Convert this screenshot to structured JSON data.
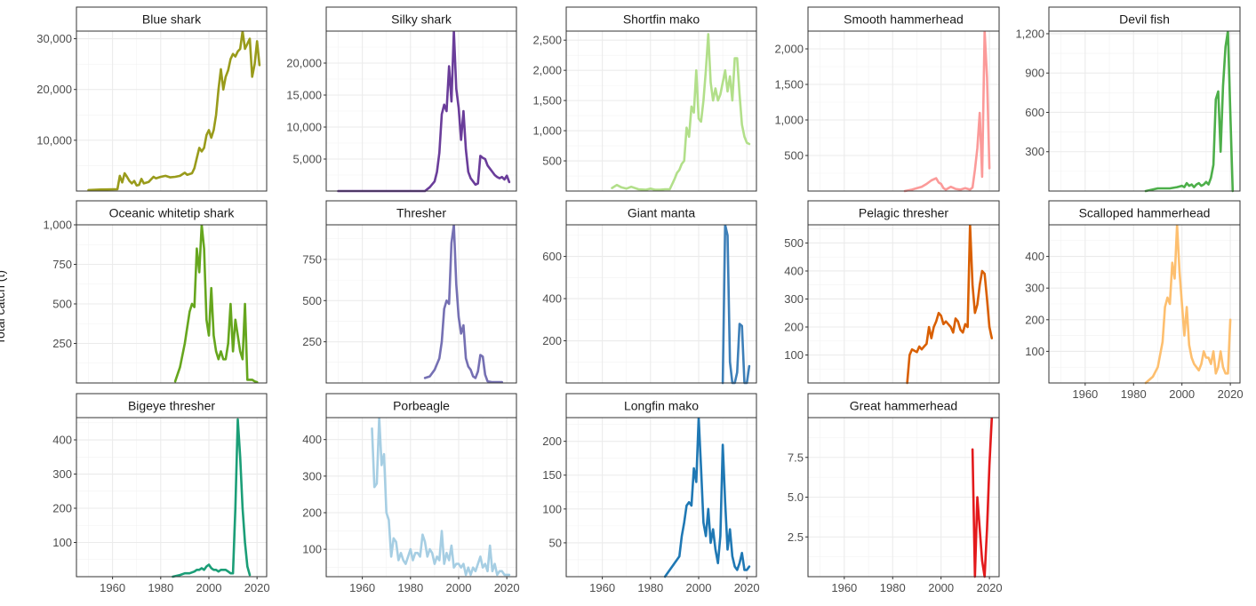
{
  "figure": {
    "ylabel": "Total catch (t)"
  },
  "chart_data": {
    "type": "line",
    "layout": "facet-grid",
    "ylabel": "Total catch (t)",
    "xlim": [
      1945,
      2024
    ],
    "x_ticks": [
      1960,
      1980,
      2000,
      2020
    ],
    "grid": true,
    "legend": "none",
    "panels": [
      {
        "name": "Blue shark",
        "color": "#999b1b",
        "ylim": [
          0,
          31500
        ],
        "y_ticks": [
          10000,
          20000,
          30000
        ],
        "y_tick_labels": [
          "10,000",
          "20,000",
          "30,000"
        ],
        "x": [
          1950,
          1955,
          1962,
          1963,
          1964,
          1965,
          1966,
          1967,
          1968,
          1969,
          1970,
          1971,
          1972,
          1973,
          1975,
          1977,
          1978,
          1980,
          1982,
          1984,
          1986,
          1988,
          1990,
          1991,
          1993,
          1994,
          1995,
          1996,
          1997,
          1998,
          1999,
          2000,
          2001,
          2002,
          2003,
          2004,
          2005,
          2006,
          2007,
          2008,
          2009,
          2010,
          2011,
          2012,
          2013,
          2014,
          2015,
          2016,
          2017,
          2018,
          2019,
          2020,
          2021
        ],
        "y": [
          200,
          300,
          350,
          3000,
          1700,
          3500,
          2800,
          2000,
          1500,
          2000,
          1100,
          1200,
          2400,
          1500,
          1800,
          2800,
          2500,
          2800,
          3000,
          2700,
          2800,
          3000,
          3600,
          3200,
          3500,
          4500,
          6500,
          8500,
          7800,
          8500,
          11000,
          12000,
          10500,
          12000,
          15000,
          20000,
          24000,
          20000,
          22500,
          23800,
          26000,
          27000,
          26500,
          27500,
          28000,
          31500,
          28000,
          29000,
          30000,
          22500,
          25000,
          29500,
          24800
        ]
      },
      {
        "name": "Silky shark",
        "color": "#6a3d9a",
        "ylim": [
          0,
          25000
        ],
        "y_ticks": [
          5000,
          10000,
          15000,
          20000
        ],
        "y_tick_labels": [
          "5,000",
          "10,000",
          "15,000",
          "20,000"
        ],
        "x": [
          1950,
          1986,
          1988,
          1990,
          1991,
          1992,
          1993,
          1994,
          1995,
          1996,
          1997,
          1998,
          1999,
          2000,
          2001,
          2002,
          2003,
          2004,
          2005,
          2006,
          2007,
          2008,
          2009,
          2010,
          2011,
          2012,
          2013,
          2014,
          2015,
          2016,
          2017,
          2018,
          2019,
          2020,
          2021
        ],
        "y": [
          0,
          0,
          600,
          1500,
          3000,
          6000,
          12000,
          13500,
          12500,
          19500,
          14000,
          25000,
          16000,
          13000,
          8000,
          12500,
          6500,
          3000,
          2000,
          1500,
          1000,
          1200,
          5500,
          5200,
          5000,
          4000,
          3500,
          3000,
          2500,
          2200,
          2000,
          2200,
          1800,
          2400,
          1400
        ]
      },
      {
        "name": "Shortfin mako",
        "color": "#b2df8a",
        "ylim": [
          0,
          2650
        ],
        "y_ticks": [
          500,
          1000,
          1500,
          2000,
          2500
        ],
        "y_tick_labels": [
          "500",
          "1,000",
          "1,500",
          "2,000",
          "2,500"
        ],
        "x": [
          1964,
          1966,
          1968,
          1970,
          1972,
          1975,
          1978,
          1980,
          1982,
          1984,
          1986,
          1988,
          1990,
          1991,
          1992,
          1993,
          1994,
          1995,
          1996,
          1997,
          1998,
          1999,
          2000,
          2001,
          2002,
          2003,
          2004,
          2005,
          2006,
          2007,
          2008,
          2009,
          2010,
          2011,
          2012,
          2013,
          2014,
          2015,
          2016,
          2017,
          2018,
          2019,
          2020,
          2021
        ],
        "y": [
          50,
          100,
          60,
          40,
          70,
          30,
          20,
          40,
          20,
          20,
          30,
          30,
          200,
          300,
          350,
          450,
          500,
          1050,
          900,
          1400,
          1300,
          2000,
          1200,
          1150,
          1500,
          2000,
          2600,
          1800,
          1500,
          1700,
          1500,
          1600,
          1800,
          2000,
          1650,
          1900,
          1500,
          2200,
          2200,
          1600,
          1100,
          900,
          800,
          780
        ]
      },
      {
        "name": "Smooth hammerhead",
        "color": "#fb9a99",
        "ylim": [
          0,
          2250
        ],
        "y_ticks": [
          500,
          1000,
          1500,
          2000
        ],
        "y_tick_labels": [
          "500",
          "1,000",
          "1,500",
          "2,000"
        ],
        "x": [
          1985,
          1988,
          1990,
          1992,
          1994,
          1996,
          1998,
          1999,
          2000,
          2001,
          2002,
          2004,
          2006,
          2008,
          2010,
          2012,
          2013,
          2014,
          2015,
          2016,
          2017,
          2018,
          2019,
          2020
        ],
        "y": [
          0,
          20,
          40,
          60,
          100,
          150,
          180,
          120,
          100,
          40,
          20,
          60,
          30,
          20,
          40,
          20,
          50,
          300,
          600,
          1100,
          200,
          2250,
          1600,
          320
        ]
      },
      {
        "name": "Devil fish",
        "color": "#4daf4a",
        "ylim": [
          0,
          1220
        ],
        "y_ticks": [
          300,
          600,
          900,
          1200
        ],
        "y_tick_labels": [
          "300",
          "600",
          "900",
          "1,200"
        ],
        "x": [
          1985,
          1990,
          1995,
          1998,
          2000,
          2001,
          2002,
          2003,
          2004,
          2005,
          2006,
          2007,
          2008,
          2009,
          2010,
          2011,
          2012,
          2013,
          2014,
          2015,
          2016,
          2017,
          2018,
          2019,
          2020,
          2021
        ],
        "y": [
          0,
          20,
          20,
          30,
          40,
          30,
          60,
          40,
          50,
          30,
          50,
          60,
          40,
          50,
          70,
          50,
          100,
          200,
          700,
          760,
          300,
          800,
          1100,
          1220,
          600,
          0
        ]
      },
      {
        "name": "Oceanic whitetip shark",
        "color": "#66a61e",
        "ylim": [
          0,
          1000
        ],
        "y_ticks": [
          250,
          500,
          750,
          1000
        ],
        "y_tick_labels": [
          "250",
          "500",
          "750",
          "1,000"
        ],
        "x": [
          1986,
          1988,
          1990,
          1992,
          1993,
          1994,
          1995,
          1996,
          1997,
          1998,
          1999,
          2000,
          2001,
          2002,
          2003,
          2004,
          2005,
          2006,
          2007,
          2008,
          2009,
          2010,
          2011,
          2012,
          2013,
          2014,
          2015,
          2016,
          2017,
          2018,
          2019,
          2020
        ],
        "y": [
          10,
          100,
          250,
          450,
          500,
          480,
          850,
          700,
          1000,
          850,
          400,
          300,
          600,
          300,
          200,
          150,
          200,
          150,
          150,
          250,
          500,
          200,
          400,
          300,
          200,
          150,
          500,
          20,
          20,
          20,
          10,
          5
        ]
      },
      {
        "name": "Thresher",
        "color": "#7570b3",
        "ylim": [
          0,
          960
        ],
        "y_ticks": [
          250,
          500,
          750
        ],
        "y_tick_labels": [
          "250",
          "500",
          "750"
        ],
        "x": [
          1986,
          1988,
          1990,
          1992,
          1993,
          1994,
          1995,
          1996,
          1997,
          1998,
          1999,
          2000,
          2001,
          2002,
          2003,
          2004,
          2005,
          2006,
          2007,
          2008,
          2009,
          2010,
          2011,
          2012,
          2014,
          2016,
          2018
        ],
        "y": [
          30,
          40,
          80,
          150,
          250,
          450,
          500,
          480,
          850,
          960,
          600,
          400,
          300,
          350,
          150,
          100,
          80,
          40,
          30,
          70,
          170,
          160,
          50,
          10,
          5,
          5,
          5
        ]
      },
      {
        "name": "Giant manta",
        "color": "#3d7fb8",
        "ylim": [
          0,
          750
        ],
        "y_ticks": [
          200,
          400,
          600
        ],
        "y_tick_labels": [
          "200",
          "400",
          "600"
        ],
        "x": [
          2010,
          2011,
          2012,
          2013,
          2014,
          2015,
          2016,
          2017,
          2018,
          2019,
          2020,
          2021
        ],
        "y": [
          0,
          750,
          700,
          100,
          0,
          0,
          50,
          280,
          270,
          0,
          0,
          80
        ]
      },
      {
        "name": "Pelagic thresher",
        "color": "#d95f02",
        "ylim": [
          0,
          565
        ],
        "y_ticks": [
          100,
          200,
          300,
          400,
          500
        ],
        "y_tick_labels": [
          "100",
          "200",
          "300",
          "400",
          "500"
        ],
        "x": [
          1986,
          1987,
          1988,
          1990,
          1991,
          1992,
          1993,
          1994,
          1995,
          1996,
          1997,
          1998,
          1999,
          2000,
          2001,
          2002,
          2003,
          2004,
          2005,
          2006,
          2007,
          2008,
          2009,
          2010,
          2011,
          2012,
          2013,
          2014,
          2015,
          2016,
          2017,
          2018,
          2019,
          2020,
          2021
        ],
        "y": [
          0,
          100,
          120,
          110,
          130,
          120,
          130,
          140,
          200,
          160,
          200,
          220,
          250,
          240,
          210,
          220,
          210,
          200,
          180,
          230,
          220,
          190,
          180,
          210,
          200,
          565,
          350,
          250,
          280,
          350,
          400,
          390,
          300,
          200,
          160
        ]
      },
      {
        "name": "Scalloped hammerhead",
        "color": "#fdbf6f",
        "ylim": [
          0,
          500
        ],
        "y_ticks": [
          100,
          200,
          300,
          400
        ],
        "y_tick_labels": [
          "100",
          "200",
          "300",
          "400"
        ],
        "x": [
          1985,
          1988,
          1990,
          1992,
          1993,
          1994,
          1995,
          1996,
          1997,
          1998,
          1999,
          2000,
          2001,
          2002,
          2003,
          2004,
          2005,
          2006,
          2007,
          2008,
          2009,
          2010,
          2011,
          2012,
          2013,
          2014,
          2015,
          2016,
          2017,
          2018,
          2019,
          2020
        ],
        "y": [
          0,
          20,
          50,
          130,
          240,
          270,
          250,
          380,
          330,
          500,
          350,
          250,
          150,
          240,
          120,
          80,
          60,
          50,
          40,
          60,
          100,
          80,
          80,
          60,
          100,
          30,
          50,
          100,
          50,
          30,
          30,
          200
        ]
      },
      {
        "name": "Bigeye thresher",
        "color": "#1b9e77",
        "ylim": [
          0,
          465
        ],
        "y_ticks": [
          100,
          200,
          300,
          400
        ],
        "y_tick_labels": [
          "100",
          "200",
          "300",
          "400"
        ],
        "x": [
          1985,
          1988,
          1990,
          1992,
          1994,
          1995,
          1996,
          1997,
          1998,
          1999,
          2000,
          2001,
          2002,
          2003,
          2004,
          2005,
          2006,
          2007,
          2008,
          2009,
          2010,
          2011,
          2012,
          2013,
          2014,
          2015,
          2016,
          2017
        ],
        "y": [
          0,
          5,
          10,
          10,
          15,
          20,
          20,
          25,
          20,
          30,
          35,
          25,
          20,
          20,
          15,
          20,
          20,
          20,
          15,
          10,
          10,
          200,
          460,
          350,
          200,
          100,
          30,
          5
        ]
      },
      {
        "name": "Porbeagle",
        "color": "#a6cee3",
        "ylim": [
          25,
          460
        ],
        "y_ticks": [
          100,
          200,
          300,
          400
        ],
        "y_tick_labels": [
          "100",
          "200",
          "300",
          "400"
        ],
        "x": [
          1964,
          1965,
          1966,
          1967,
          1968,
          1969,
          1970,
          1971,
          1972,
          1973,
          1974,
          1975,
          1976,
          1977,
          1978,
          1979,
          1980,
          1981,
          1982,
          1983,
          1984,
          1985,
          1986,
          1987,
          1988,
          1989,
          1990,
          1991,
          1992,
          1993,
          1994,
          1995,
          1996,
          1997,
          1998,
          1999,
          2000,
          2001,
          2002,
          2003,
          2004,
          2005,
          2006,
          2007,
          2008,
          2009,
          2010,
          2011,
          2012,
          2013,
          2014,
          2015,
          2016,
          2017,
          2018,
          2019,
          2020,
          2021
        ],
        "y": [
          430,
          270,
          280,
          460,
          330,
          360,
          200,
          180,
          80,
          130,
          120,
          70,
          90,
          70,
          60,
          80,
          100,
          70,
          90,
          90,
          80,
          140,
          120,
          80,
          100,
          90,
          60,
          80,
          70,
          150,
          60,
          90,
          70,
          110,
          50,
          60,
          60,
          50,
          60,
          30,
          50,
          30,
          50,
          40,
          60,
          80,
          50,
          60,
          40,
          110,
          40,
          60,
          30,
          40,
          40,
          30,
          30,
          30
        ]
      },
      {
        "name": "Longfin mako",
        "color": "#1f78b4",
        "ylim": [
          0,
          235
        ],
        "y_ticks": [
          50,
          100,
          150,
          200
        ],
        "y_tick_labels": [
          "50",
          "100",
          "150",
          "200"
        ],
        "x": [
          1986,
          1988,
          1990,
          1992,
          1993,
          1994,
          1995,
          1996,
          1997,
          1998,
          1999,
          2000,
          2001,
          2002,
          2003,
          2004,
          2005,
          2006,
          2007,
          2008,
          2009,
          2010,
          2011,
          2012,
          2013,
          2014,
          2015,
          2016,
          2017,
          2018,
          2019,
          2020,
          2021
        ],
        "y": [
          0,
          10,
          20,
          30,
          60,
          80,
          105,
          110,
          105,
          160,
          140,
          235,
          160,
          80,
          60,
          100,
          50,
          70,
          40,
          20,
          60,
          195,
          110,
          40,
          70,
          30,
          15,
          10,
          20,
          35,
          10,
          10,
          15
        ]
      },
      {
        "name": "Great hammerhead",
        "color": "#e31a1c",
        "ylim": [
          0,
          10
        ],
        "y_ticks": [
          2.5,
          5,
          7.5
        ],
        "y_tick_labels": [
          "2.5",
          "5.0",
          "7.5"
        ],
        "x": [
          2013,
          2014,
          2015,
          2016,
          2017,
          2018,
          2019,
          2020,
          2021
        ],
        "y": [
          8,
          0,
          5,
          3,
          1,
          0,
          3,
          7,
          10
        ]
      }
    ]
  }
}
